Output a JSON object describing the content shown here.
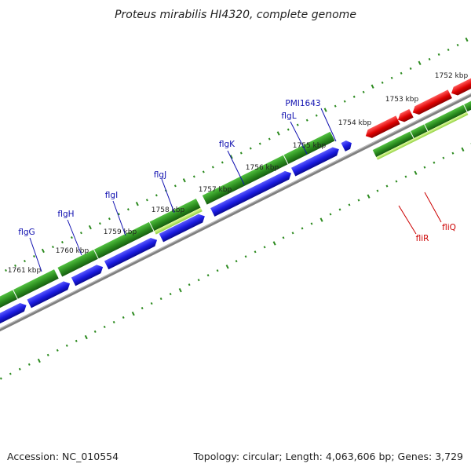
{
  "title": "Proteus mirabilis HI4320, complete genome",
  "footer": {
    "accession": "Accession: NC_010554",
    "summary": "Topology: circular; Length: 4,063,606 bp; Genes: 3,729"
  },
  "colors": {
    "gene_label_forward": "#1010b0",
    "gene_label_reverse": "#cc0000",
    "cds_forward_strand": "#2a8a1e",
    "cds_forward_blue": "#1a1ae0",
    "cds_reverse_red": "#dd0000",
    "cds_yellow_green": "#b8f060",
    "backbone": "#808080",
    "ticks": "#2b8a1e"
  },
  "kbp_labels": [
    "1752 kbp",
    "1753 kbp",
    "1754 kbp",
    "1755 kbp",
    "1756 kbp",
    "1757 kbp",
    "1758 kbp",
    "1759 kbp",
    "1760 kbp",
    "1761 kbp"
  ],
  "genes": [
    {
      "name": "flgG",
      "strand": "forward"
    },
    {
      "name": "flgH",
      "strand": "forward"
    },
    {
      "name": "flgI",
      "strand": "forward"
    },
    {
      "name": "flgJ",
      "strand": "forward"
    },
    {
      "name": "flgK",
      "strand": "forward"
    },
    {
      "name": "flgL",
      "strand": "forward"
    },
    {
      "name": "PMI1643",
      "strand": "forward"
    },
    {
      "name": "fliR",
      "strand": "reverse"
    },
    {
      "name": "fliQ",
      "strand": "reverse"
    }
  ]
}
